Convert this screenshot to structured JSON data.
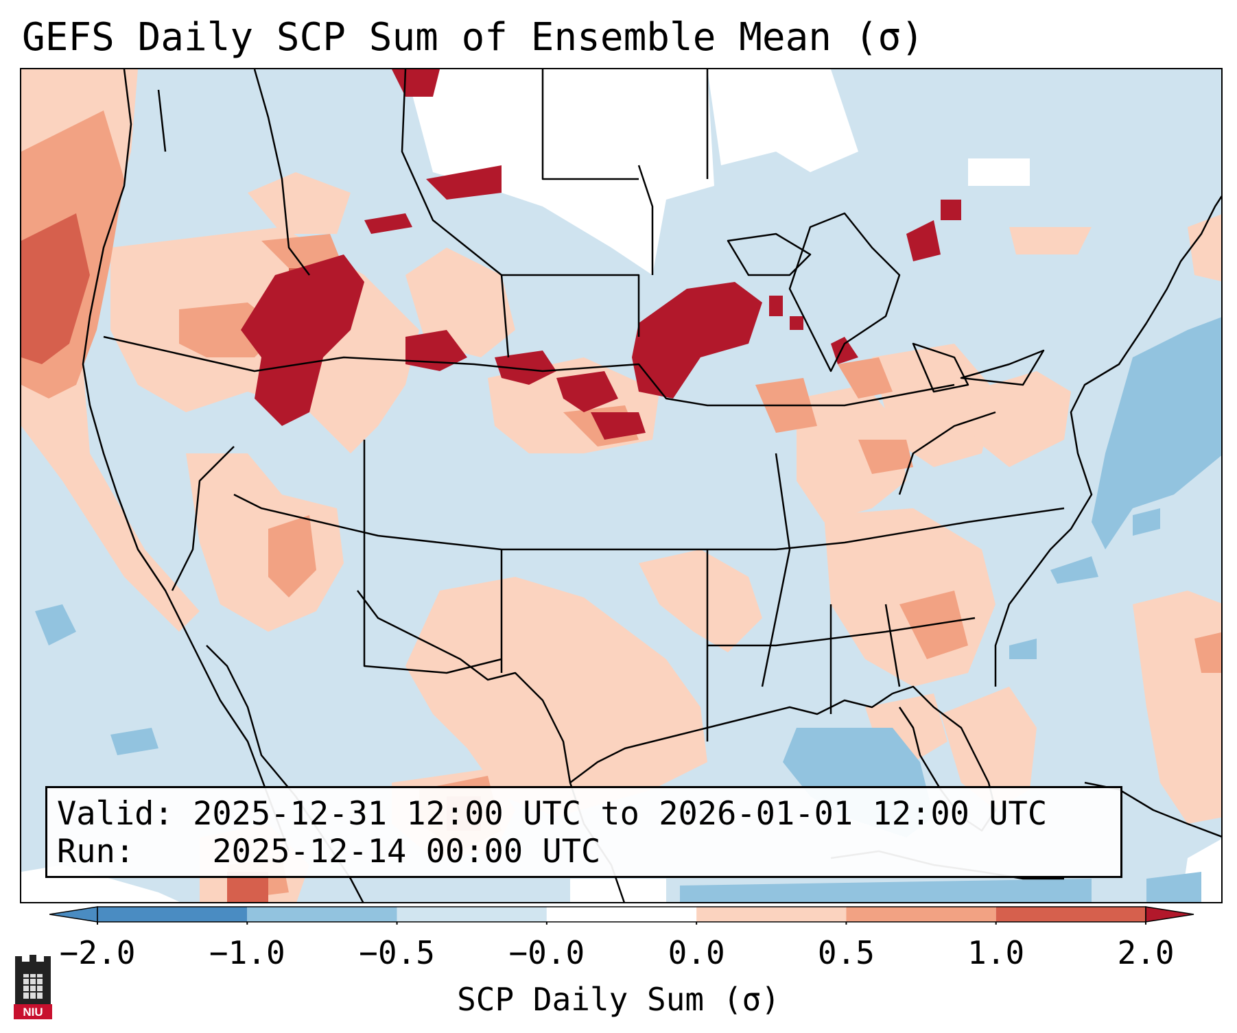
{
  "title": "GEFS Daily SCP Sum of Ensemble Mean (σ)",
  "info": {
    "valid_label": "Valid:",
    "valid_value": "2025-12-31 12:00 UTC to 2026-01-01 12:00 UTC",
    "run_label": "Run:",
    "run_value": "2025-12-14 00:00 UTC"
  },
  "colorbar": {
    "label": "SCP Daily Sum (σ)",
    "bins": [
      {
        "from": -3.0,
        "to": -2.0,
        "color": "#4a8cc2"
      },
      {
        "from": -2.0,
        "to": -1.0,
        "color": "#4a8cc2"
      },
      {
        "from": -1.0,
        "to": -0.5,
        "color": "#92c3df"
      },
      {
        "from": -0.5,
        "to": -0.0,
        "color": "#d1e5f0"
      },
      {
        "from": -0.0,
        "to": 0.0,
        "color": "#ffffff"
      },
      {
        "from": 0.0,
        "to": 0.5,
        "color": "#fbd3bf"
      },
      {
        "from": 0.5,
        "to": 1.0,
        "color": "#f2a283"
      },
      {
        "from": 1.0,
        "to": 2.0,
        "color": "#d6604d"
      },
      {
        "from": 2.0,
        "to": 3.0,
        "color": "#b2182b"
      }
    ],
    "ticks": [
      "−2.0",
      "−1.0",
      "−0.5",
      "−0.0",
      "0.0",
      "0.5",
      "1.0",
      "2.0"
    ]
  },
  "colors": {
    "ocean_light_blue": "#cfe3ef",
    "blue_mid": "#92c3df",
    "blue_dark": "#4a8cc2",
    "white": "#ffffff",
    "salmon_light": "#fbd3bf",
    "salmon_mid": "#f2a283",
    "red_mid": "#d6604d",
    "red_dark": "#b2182b"
  },
  "logo": {
    "text": "NIU",
    "icon": "niu-castle-icon"
  }
}
